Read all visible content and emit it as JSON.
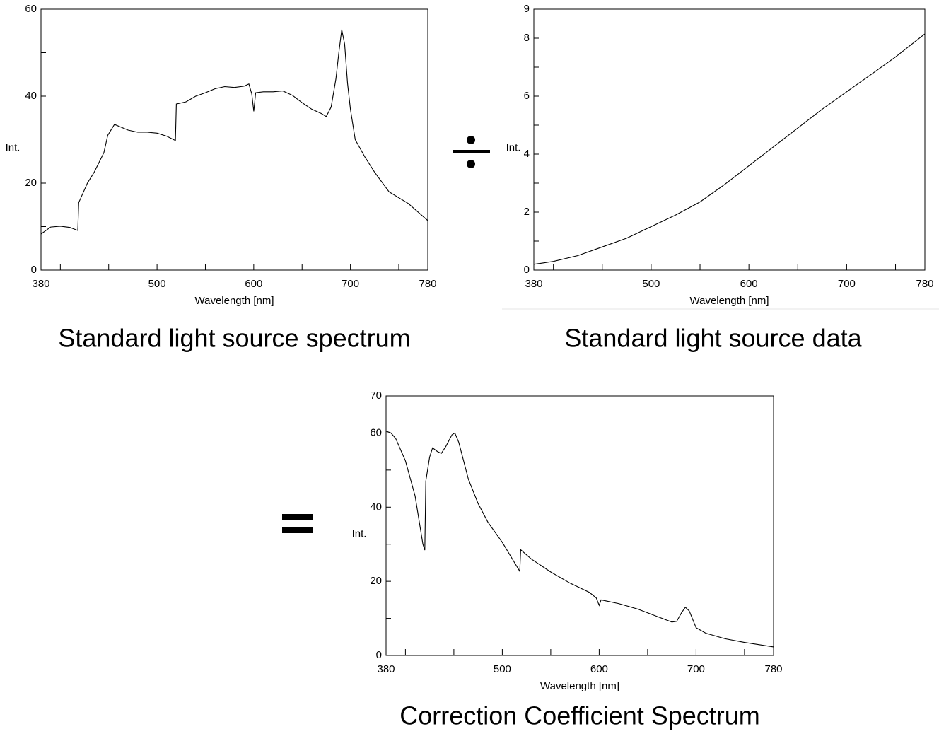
{
  "chart_data": [
    {
      "type": "line",
      "title": "Standard light source spectrum",
      "xlabel": "Wavelength [nm]",
      "ylabel": "Int.",
      "xlim": [
        380,
        780
      ],
      "xticks": [
        380,
        500,
        600,
        700,
        780
      ],
      "xminorticks": [
        400,
        450,
        550,
        650,
        750
      ],
      "ylim": [
        0,
        60
      ],
      "yticks": [
        0,
        20,
        40,
        60
      ],
      "yminorticks": [
        10,
        50
      ],
      "series": [
        {
          "color": "#000000",
          "x": [
            380,
            390,
            400,
            410,
            418,
            419,
            428,
            435,
            445,
            449,
            456,
            470,
            480,
            490,
            500,
            510,
            519,
            520,
            530,
            540,
            550,
            560,
            570,
            580,
            590,
            595,
            598,
            600,
            602,
            610,
            620,
            630,
            640,
            650,
            660,
            670,
            675,
            680,
            685,
            688,
            691,
            694,
            697,
            700,
            705,
            715,
            725,
            740,
            760,
            780
          ],
          "values": [
            8.3,
            9.9,
            10.1,
            9.8,
            9.1,
            15.5,
            20,
            22.5,
            27,
            31,
            33.5,
            32.2,
            31.7,
            31.7,
            31.5,
            30.8,
            29.8,
            38.2,
            38.7,
            40.0,
            40.8,
            41.7,
            42.2,
            42.0,
            42.3,
            42.8,
            40.5,
            36.5,
            40.8,
            41.0,
            41.0,
            41.2,
            40.2,
            38.5,
            37,
            36,
            35.3,
            37.5,
            44,
            50,
            55.3,
            52,
            43,
            37,
            30,
            26,
            22.5,
            18,
            15.3,
            11.4
          ]
        }
      ]
    },
    {
      "type": "line",
      "title": "Standard light source data",
      "xlabel": "Wavelength [nm]",
      "ylabel": "Int.",
      "xlim": [
        380,
        780
      ],
      "xticks": [
        380,
        500,
        600,
        700,
        780
      ],
      "xminorticks": [
        400,
        450,
        550,
        650,
        750
      ],
      "ylim": [
        0,
        9
      ],
      "yticks": [
        0,
        2,
        4,
        6,
        8,
        9
      ],
      "yminorticks": [
        1,
        3,
        5,
        7
      ],
      "series": [
        {
          "color": "#000000",
          "x": [
            380,
            400,
            425,
            450,
            475,
            500,
            525,
            550,
            575,
            600,
            625,
            650,
            675,
            700,
            725,
            750,
            780
          ],
          "values": [
            0.2,
            0.3,
            0.5,
            0.8,
            1.1,
            1.5,
            1.9,
            2.35,
            2.95,
            3.6,
            4.25,
            4.9,
            5.55,
            6.15,
            6.75,
            7.35,
            8.15
          ]
        }
      ]
    },
    {
      "type": "line",
      "title": "Correction Coefficient Spectrum",
      "xlabel": "Wavelength [nm]",
      "ylabel": "Int.",
      "xlim": [
        380,
        780
      ],
      "xticks": [
        380,
        500,
        600,
        700,
        780
      ],
      "xminorticks": [
        400,
        450,
        550,
        650,
        750
      ],
      "ylim": [
        0,
        70
      ],
      "yticks": [
        0,
        20,
        40,
        60,
        70
      ],
      "yminorticks": [
        10,
        30,
        50
      ],
      "series": [
        {
          "color": "#000000",
          "x": [
            380,
            385,
            390,
            400,
            410,
            418,
            420,
            421,
            425,
            428,
            433,
            437,
            442,
            448,
            451,
            455,
            465,
            475,
            485,
            500,
            518,
            519,
            530,
            550,
            570,
            590,
            597,
            600,
            602,
            620,
            640,
            660,
            675,
            680,
            685,
            689,
            693,
            700,
            710,
            730,
            750,
            780
          ],
          "values": [
            60.5,
            60,
            58.5,
            52.5,
            43,
            30,
            28.4,
            47,
            53.5,
            56,
            55,
            54.5,
            56.5,
            59.5,
            60,
            57.5,
            47.5,
            41,
            36,
            30.5,
            22.7,
            28.5,
            26,
            22.5,
            19.5,
            17,
            15.5,
            13.5,
            15,
            14,
            12.5,
            10.5,
            9,
            9.2,
            11.5,
            13,
            12,
            7.5,
            6,
            4.5,
            3.5,
            2.3
          ]
        }
      ]
    }
  ]
}
